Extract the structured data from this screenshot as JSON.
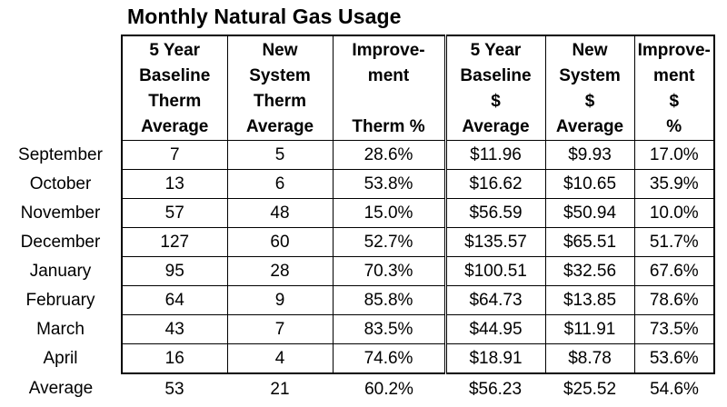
{
  "title": "Monthly Natural Gas Usage",
  "headers": [
    [
      "5 Year",
      "Baseline",
      "Therm",
      "Average"
    ],
    [
      "New",
      "System",
      "Therm",
      "Average"
    ],
    [
      "Improve-",
      "ment",
      "",
      "Therm %"
    ],
    [
      "5 Year",
      "Baseline",
      "$",
      "Average"
    ],
    [
      "New",
      "System",
      "$",
      "Average"
    ],
    [
      "Improve-",
      "ment",
      "$",
      "%"
    ]
  ],
  "rows": [
    {
      "label": "September",
      "cells": [
        "7",
        "5",
        "28.6%",
        "$11.96",
        "$9.93",
        "17.0%"
      ]
    },
    {
      "label": "October",
      "cells": [
        "13",
        "6",
        "53.8%",
        "$16.62",
        "$10.65",
        "35.9%"
      ]
    },
    {
      "label": "November",
      "cells": [
        "57",
        "48",
        "15.0%",
        "$56.59",
        "$50.94",
        "10.0%"
      ]
    },
    {
      "label": "December",
      "cells": [
        "127",
        "60",
        "52.7%",
        "$135.57",
        "$65.51",
        "51.7%"
      ]
    },
    {
      "label": "January",
      "cells": [
        "95",
        "28",
        "70.3%",
        "$100.51",
        "$32.56",
        "67.6%"
      ]
    },
    {
      "label": "February",
      "cells": [
        "64",
        "9",
        "85.8%",
        "$64.73",
        "$13.85",
        "78.6%"
      ]
    },
    {
      "label": "March",
      "cells": [
        "43",
        "7",
        "83.5%",
        "$44.95",
        "$11.91",
        "73.5%"
      ]
    },
    {
      "label": "April",
      "cells": [
        "16",
        "4",
        "74.6%",
        "$18.91",
        "$8.78",
        "53.6%"
      ]
    }
  ],
  "average": {
    "label": "Average",
    "cells": [
      "53",
      "21",
      "60.2%",
      "$56.23",
      "$25.52",
      "54.6%"
    ]
  }
}
